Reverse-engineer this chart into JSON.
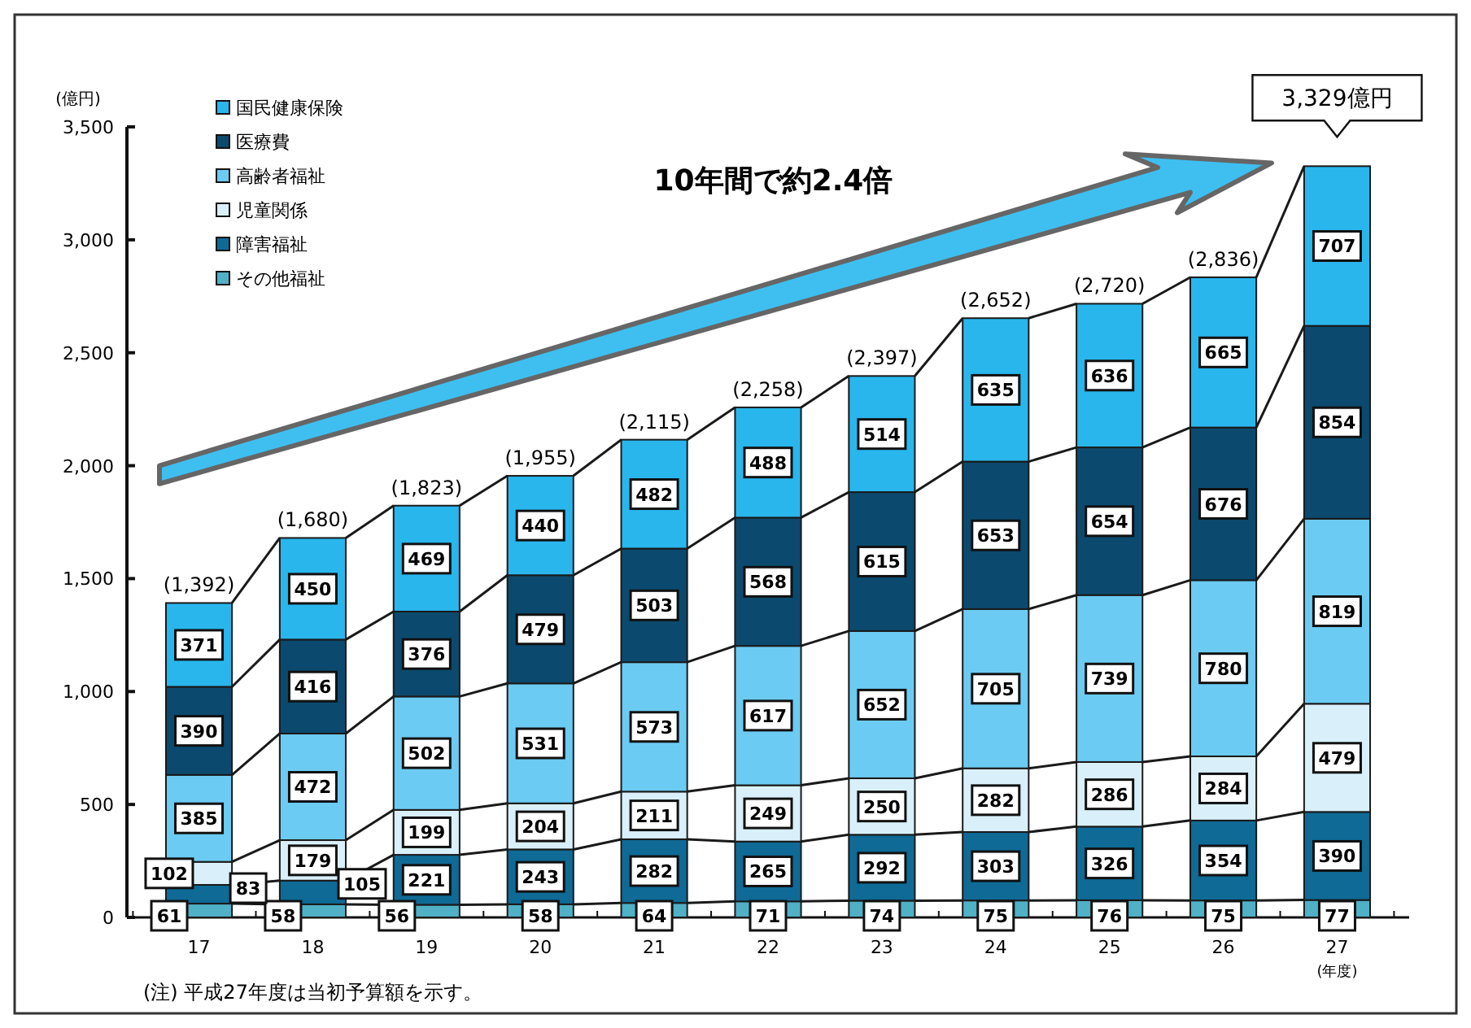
{
  "chart_data": {
    "type": "bar",
    "stacked": true,
    "ylabel": "(億円)",
    "xlabel": "(年度)",
    "categories": [
      "17",
      "18",
      "19",
      "20",
      "21",
      "22",
      "23",
      "24",
      "25",
      "26",
      "27"
    ],
    "series": [
      {
        "name": "その他福祉",
        "color": "#4fb0c6",
        "values": [
          61,
          58,
          56,
          58,
          64,
          71,
          74,
          75,
          76,
          75,
          77
        ]
      },
      {
        "name": "障害福祉",
        "color": "#0f6a96",
        "values": [
          83,
          105,
          221,
          243,
          282,
          265,
          292,
          303,
          326,
          354,
          390
        ]
      },
      {
        "name": "児童関係",
        "color": "#d9f0fb",
        "values": [
          102,
          179,
          199,
          204,
          211,
          249,
          250,
          282,
          286,
          284,
          479
        ]
      },
      {
        "name": "高齢者福祉",
        "color": "#6ccbf2",
        "values": [
          385,
          472,
          502,
          531,
          573,
          617,
          652,
          705,
          739,
          780,
          819
        ]
      },
      {
        "name": "医療費",
        "color": "#0b4a6e",
        "values": [
          390,
          416,
          376,
          479,
          503,
          568,
          615,
          653,
          654,
          676,
          854
        ]
      },
      {
        "name": "国民健康保険",
        "color": "#29b6ec",
        "values": [
          371,
          450,
          469,
          440,
          482,
          488,
          514,
          635,
          636,
          665,
          707
        ]
      }
    ],
    "totals": [
      "(1,392)",
      "(1,680)",
      "(1,823)",
      "(1,955)",
      "(2,115)",
      "(2,258)",
      "(2,397)",
      "(2,652)",
      "(2,720)",
      "(2,836)",
      "3,329億円"
    ],
    "data_labels": true,
    "legend": "top left",
    "grid": false,
    "ylim": [
      0,
      3500
    ],
    "yticks": [
      {
        "value": 0,
        "label": "0"
      },
      {
        "value": 500,
        "label": "500"
      },
      {
        "value": 1000,
        "label": "1,000"
      },
      {
        "value": 1500,
        "label": "1,500"
      },
      {
        "value": 2000,
        "label": "2,000"
      },
      {
        "value": 2500,
        "label": "2,500"
      },
      {
        "value": 3000,
        "label": "3,000"
      },
      {
        "value": 3500,
        "label": "3,500"
      }
    ],
    "annotations": [
      "10年間で約2.4倍",
      "(注) 平成27年度は当初予算額を示す。"
    ]
  }
}
